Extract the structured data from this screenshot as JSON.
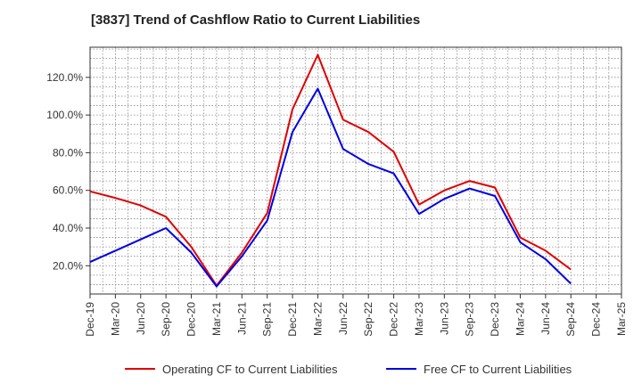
{
  "chart_data": {
    "type": "line",
    "title": "[3837]  Trend of Cashflow Ratio to Current Liabilities",
    "xlabel": "",
    "ylabel": "",
    "categories": [
      "Dec-19",
      "Mar-20",
      "Jun-20",
      "Sep-20",
      "Dec-20",
      "Mar-21",
      "Jun-21",
      "Sep-21",
      "Dec-21",
      "Mar-22",
      "Jun-22",
      "Sep-22",
      "Dec-22",
      "Mar-23",
      "Jun-23",
      "Sep-23",
      "Dec-23",
      "Mar-24",
      "Jun-24",
      "Sep-24",
      "Dec-24",
      "Mar-25"
    ],
    "ylim": [
      5,
      136
    ],
    "yticks": [
      20,
      40,
      60,
      80,
      100,
      120
    ],
    "ytick_labels": [
      "20.0%",
      "40.0%",
      "60.0%",
      "80.0%",
      "100.0%",
      "120.0%"
    ],
    "grid": true,
    "legend_position": "bottom",
    "series": [
      {
        "name": "Operating CF to Current Liabilities",
        "color": "#e00000",
        "values": [
          59.5,
          56.0,
          52.0,
          46.0,
          30.0,
          9.5,
          27.0,
          48.0,
          103.0,
          132.0,
          97.5,
          91.0,
          80.5,
          52.5,
          60.0,
          65.0,
          61.5,
          35.0,
          28.0,
          18.0,
          null,
          null
        ]
      },
      {
        "name": "Free CF to Current Liabilities",
        "color": "#0000e0",
        "values": [
          22.0,
          28.0,
          34.0,
          40.0,
          27.0,
          9.0,
          25.0,
          44.0,
          91.0,
          114.0,
          82.0,
          74.0,
          69.0,
          47.5,
          55.5,
          61.0,
          57.0,
          32.5,
          23.5,
          10.5,
          null,
          null
        ]
      }
    ]
  }
}
